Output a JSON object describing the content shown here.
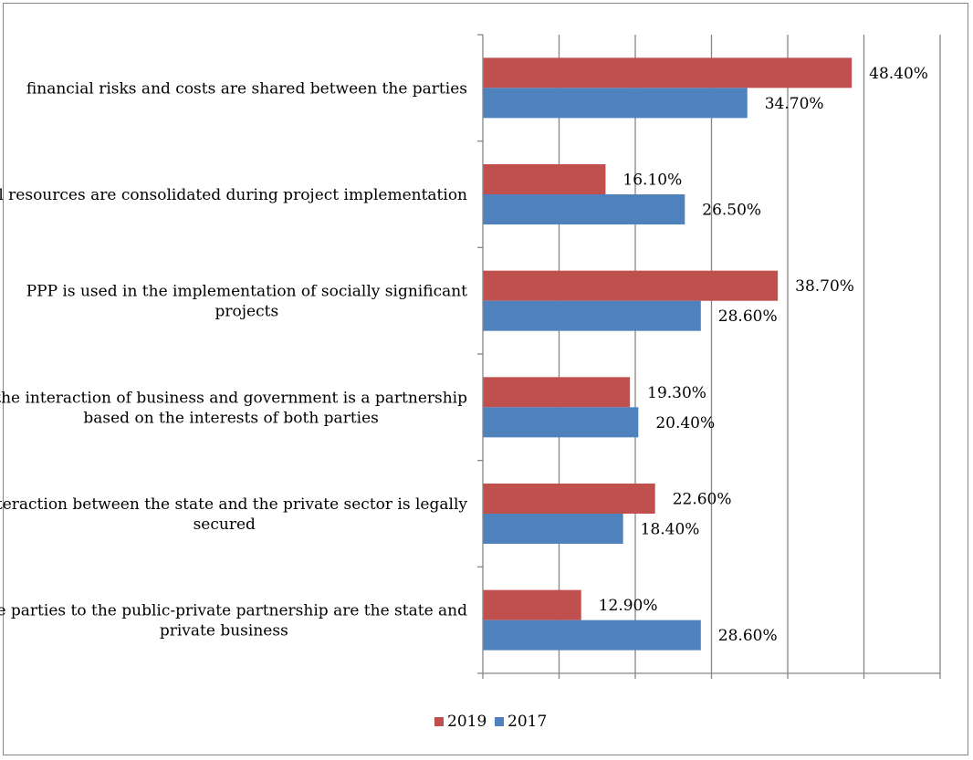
{
  "chart_data": {
    "type": "bar",
    "orientation": "horizontal",
    "categories": [
      [
        "financial risks and costs are shared between the parties"
      ],
      [
        "all resources are consolidated during project implementation"
      ],
      [
        "PPP is used in the implementation of socially significant",
        "projects"
      ],
      [
        "the interaction of business and government is a partnership",
        "based on the interests of both parties"
      ],
      [
        "interaction between the state and the private sector is legally",
        "secured"
      ],
      [
        "the parties to the public-private partnership are the state and",
        "private business"
      ]
    ],
    "series": [
      {
        "name": "2019",
        "color": "#C0504D",
        "values": [
          48.4,
          16.1,
          38.7,
          19.3,
          22.6,
          12.9
        ],
        "labels": [
          "48.40%",
          "16.10%",
          "38.70%",
          "19.30%",
          "22.60%",
          "12.90%"
        ]
      },
      {
        "name": "2017",
        "color": "#4F81BD",
        "values": [
          34.7,
          26.5,
          28.6,
          20.4,
          18.4,
          28.6
        ],
        "labels": [
          "34.70%",
          "26.50%",
          "28.60%",
          "20.40%",
          "18.40%",
          "28.60%"
        ]
      }
    ],
    "xlim": [
      0,
      60
    ],
    "major_unit": 10,
    "grid": true,
    "tick_labels_shown": false,
    "legend_position": "bottom"
  }
}
